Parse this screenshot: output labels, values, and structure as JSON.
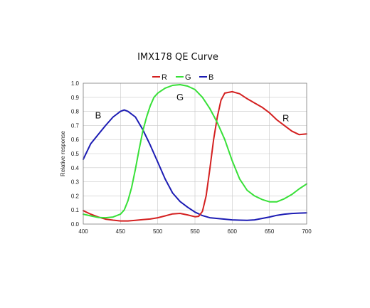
{
  "chart_data": {
    "type": "line",
    "title": "IMX178 QE Curve",
    "xlabel": "",
    "ylabel": "Relative response",
    "xlim": [
      400,
      700
    ],
    "ylim": [
      0,
      1.0
    ],
    "xticks": [
      "400",
      "450",
      "500",
      "550",
      "600",
      "650",
      "700"
    ],
    "yticks": [
      "0.0",
      "0.1",
      "0.2",
      "0.3",
      "0.4",
      "0.5",
      "0.6",
      "0.7",
      "0.8",
      "0.9",
      "1.0"
    ],
    "grid": true,
    "legend": "top-center",
    "series": [
      {
        "name": "R",
        "color": "#d42020",
        "points": [
          [
            400,
            0.095
          ],
          [
            410,
            0.07
          ],
          [
            420,
            0.05
          ],
          [
            430,
            0.035
          ],
          [
            440,
            0.028
          ],
          [
            450,
            0.022
          ],
          [
            460,
            0.022
          ],
          [
            470,
            0.027
          ],
          [
            480,
            0.032
          ],
          [
            490,
            0.036
          ],
          [
            500,
            0.045
          ],
          [
            510,
            0.058
          ],
          [
            520,
            0.072
          ],
          [
            530,
            0.076
          ],
          [
            540,
            0.065
          ],
          [
            550,
            0.052
          ],
          [
            555,
            0.055
          ],
          [
            560,
            0.09
          ],
          [
            565,
            0.2
          ],
          [
            570,
            0.39
          ],
          [
            575,
            0.6
          ],
          [
            580,
            0.76
          ],
          [
            585,
            0.88
          ],
          [
            590,
            0.93
          ],
          [
            600,
            0.94
          ],
          [
            610,
            0.925
          ],
          [
            620,
            0.89
          ],
          [
            630,
            0.86
          ],
          [
            640,
            0.83
          ],
          [
            650,
            0.79
          ],
          [
            660,
            0.74
          ],
          [
            670,
            0.7
          ],
          [
            680,
            0.66
          ],
          [
            690,
            0.635
          ],
          [
            700,
            0.64
          ]
        ]
      },
      {
        "name": "G",
        "color": "#38e038",
        "points": [
          [
            400,
            0.07
          ],
          [
            410,
            0.058
          ],
          [
            420,
            0.047
          ],
          [
            430,
            0.045
          ],
          [
            440,
            0.05
          ],
          [
            450,
            0.07
          ],
          [
            455,
            0.1
          ],
          [
            460,
            0.165
          ],
          [
            465,
            0.26
          ],
          [
            470,
            0.39
          ],
          [
            475,
            0.53
          ],
          [
            480,
            0.66
          ],
          [
            485,
            0.76
          ],
          [
            490,
            0.84
          ],
          [
            495,
            0.9
          ],
          [
            500,
            0.93
          ],
          [
            510,
            0.965
          ],
          [
            520,
            0.985
          ],
          [
            530,
            0.99
          ],
          [
            540,
            0.98
          ],
          [
            550,
            0.955
          ],
          [
            560,
            0.9
          ],
          [
            570,
            0.82
          ],
          [
            580,
            0.72
          ],
          [
            590,
            0.6
          ],
          [
            600,
            0.45
          ],
          [
            610,
            0.32
          ],
          [
            620,
            0.24
          ],
          [
            630,
            0.2
          ],
          [
            640,
            0.175
          ],
          [
            650,
            0.158
          ],
          [
            660,
            0.158
          ],
          [
            670,
            0.18
          ],
          [
            680,
            0.21
          ],
          [
            690,
            0.25
          ],
          [
            700,
            0.285
          ]
        ]
      },
      {
        "name": "B",
        "color": "#1c1cb4",
        "points": [
          [
            400,
            0.46
          ],
          [
            410,
            0.57
          ],
          [
            420,
            0.635
          ],
          [
            430,
            0.7
          ],
          [
            440,
            0.76
          ],
          [
            450,
            0.8
          ],
          [
            455,
            0.81
          ],
          [
            460,
            0.8
          ],
          [
            470,
            0.76
          ],
          [
            480,
            0.67
          ],
          [
            490,
            0.56
          ],
          [
            500,
            0.44
          ],
          [
            510,
            0.32
          ],
          [
            520,
            0.22
          ],
          [
            530,
            0.16
          ],
          [
            540,
            0.12
          ],
          [
            550,
            0.085
          ],
          [
            560,
            0.06
          ],
          [
            570,
            0.045
          ],
          [
            580,
            0.04
          ],
          [
            590,
            0.035
          ],
          [
            600,
            0.03
          ],
          [
            610,
            0.028
          ],
          [
            620,
            0.027
          ],
          [
            630,
            0.03
          ],
          [
            640,
            0.04
          ],
          [
            650,
            0.05
          ],
          [
            660,
            0.062
          ],
          [
            670,
            0.07
          ],
          [
            680,
            0.075
          ],
          [
            690,
            0.078
          ],
          [
            700,
            0.08
          ]
        ]
      }
    ],
    "annotations": [
      {
        "text": "B",
        "x": 420,
        "y": 0.75
      },
      {
        "text": "G",
        "x": 530,
        "y": 0.88
      },
      {
        "text": "R",
        "x": 672,
        "y": 0.73
      }
    ]
  }
}
